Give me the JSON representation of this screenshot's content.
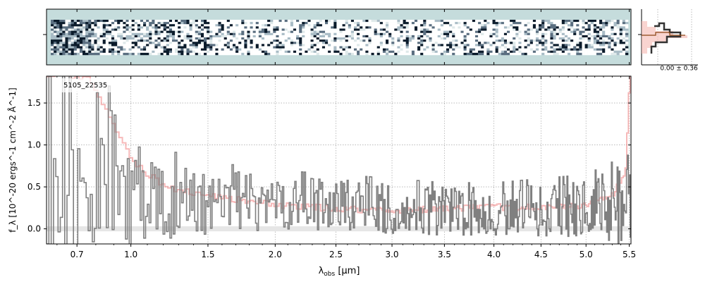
{
  "chart_data": {
    "type": "line",
    "object_label": "5105_22535",
    "xlabel": "λ_obs [μm]",
    "xlabel_main": "λ",
    "xlabel_sub": "obs",
    "xlabel_unit": " [μm]",
    "ylabel": "f_λ [10^-20 ergs^-1 cm^-2 Å^-1]",
    "xlim": [
      0.55,
      5.52
    ],
    "ylim": [
      -0.18,
      1.82
    ],
    "x_ticks": [
      {
        "value": 0.7,
        "label": "0.7"
      },
      {
        "value": 1.0,
        "label": "1.0"
      },
      {
        "value": 1.5,
        "label": "1.5"
      },
      {
        "value": 2.0,
        "label": "2.0"
      },
      {
        "value": 2.5,
        "label": "2.5"
      },
      {
        "value": 3.0,
        "label": "3.0"
      },
      {
        "value": 3.5,
        "label": "3.5"
      },
      {
        "value": 4.0,
        "label": "4.0"
      },
      {
        "value": 4.5,
        "label": "4.5"
      },
      {
        "value": 5.0,
        "label": "5.0"
      },
      {
        "value": 5.5,
        "label": "5.5"
      }
    ],
    "y_ticks": [
      {
        "value": 0.0,
        "label": "0.0"
      },
      {
        "value": 0.5,
        "label": "0.5"
      },
      {
        "value": 1.0,
        "label": "1.0"
      },
      {
        "value": 1.5,
        "label": "1.5"
      }
    ],
    "grid": true,
    "colors": {
      "flux": "#808080",
      "error": "#f08080",
      "twod_bg": "#c5dcdc",
      "twod_dark": "#0a1a2a",
      "profile": "#333333",
      "profile_model": "#8b4513"
    },
    "flux_anchors": {
      "x": [
        0.6,
        0.7,
        0.8,
        0.9,
        1.0,
        1.2,
        1.5,
        2.0,
        2.5,
        3.0,
        3.5,
        4.0,
        4.5,
        5.0,
        5.3,
        5.5
      ],
      "lo": [
        -0.18,
        -0.18,
        -0.15,
        -0.12,
        -0.05,
        0.0,
        0.05,
        0.08,
        0.05,
        0.02,
        0.0,
        0.0,
        0.0,
        0.0,
        -0.05,
        -0.1
      ],
      "hi": [
        1.82,
        1.82,
        1.82,
        1.65,
        1.2,
        0.95,
        0.8,
        0.7,
        0.65,
        0.6,
        0.55,
        0.55,
        0.6,
        0.65,
        0.8,
        1.4
      ]
    },
    "error_series": {
      "x": [
        0.6,
        0.75,
        0.8,
        0.85,
        0.9,
        1.0,
        1.2,
        1.5,
        2.0,
        2.5,
        3.0,
        3.5,
        4.0,
        4.5,
        5.0,
        5.3,
        5.45,
        5.5
      ],
      "y": [
        1.82,
        1.82,
        1.6,
        1.45,
        1.2,
        0.8,
        0.5,
        0.4,
        0.28,
        0.24,
        0.22,
        0.24,
        0.26,
        0.25,
        0.28,
        0.4,
        0.7,
        1.82
      ]
    },
    "profile_annotation": "0.00 ± 0.36"
  }
}
